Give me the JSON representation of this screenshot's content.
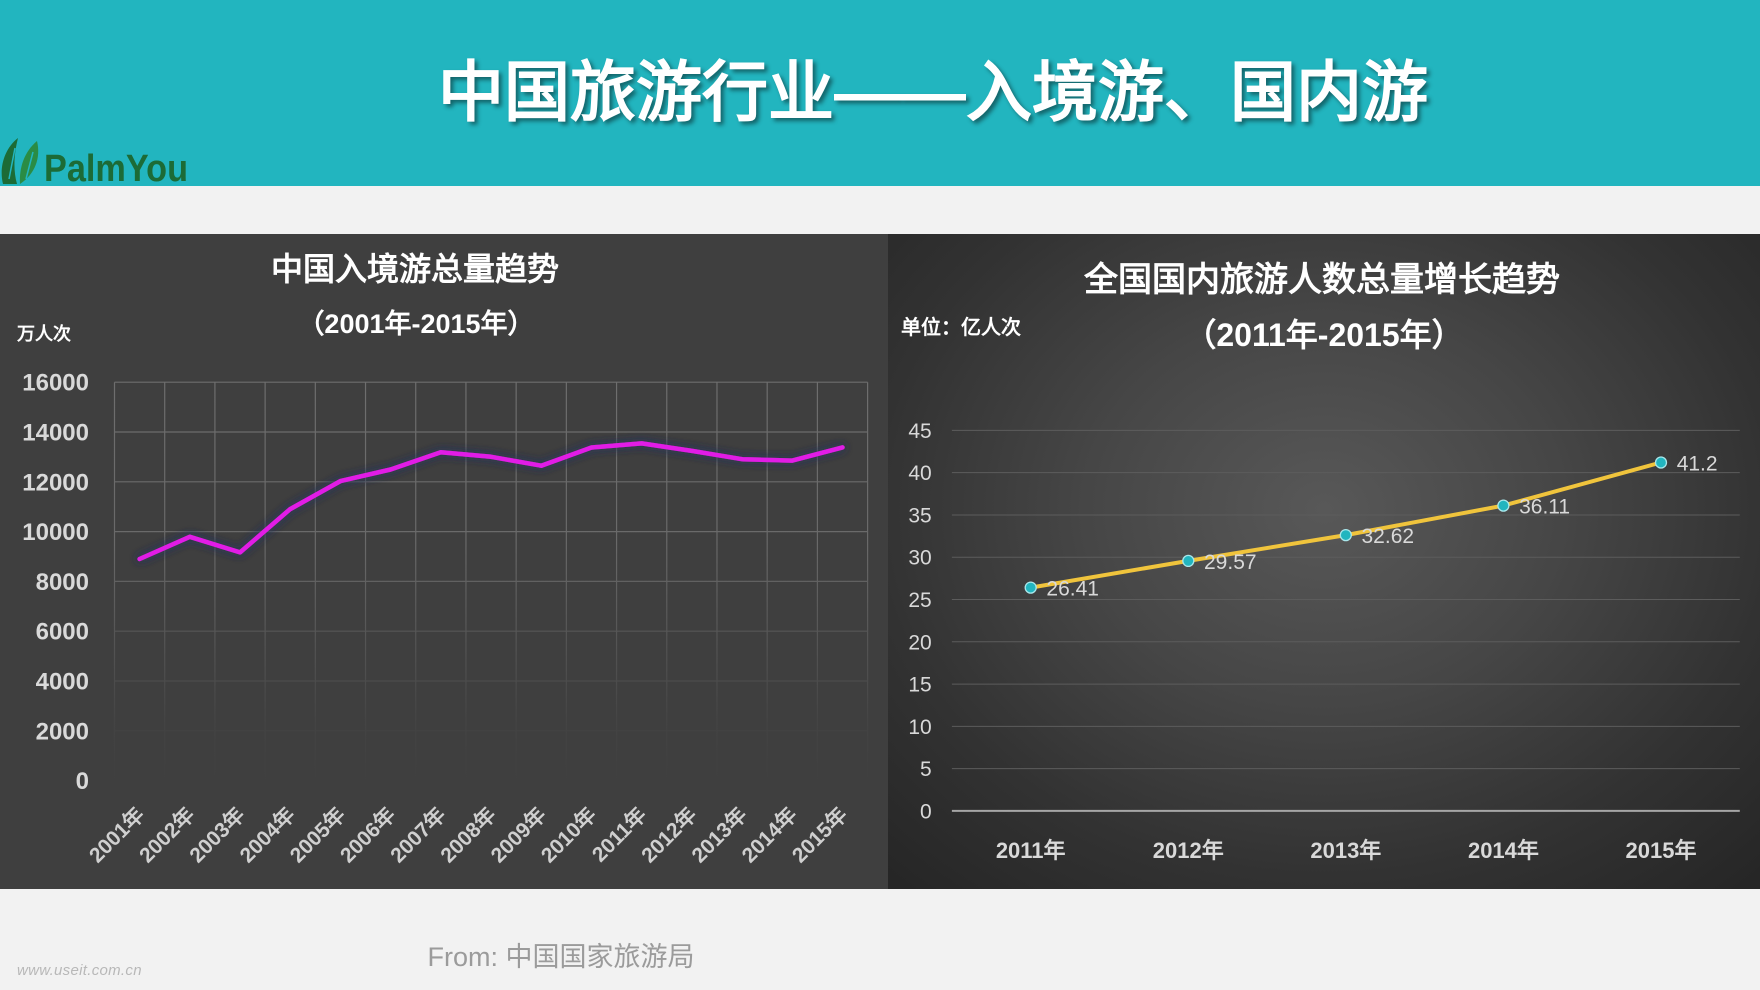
{
  "header": {
    "title": "中国旅游行业——入境游、国内游",
    "logo_text": "PalmYou",
    "logo_icon": "palm-leaf-icon",
    "background_color": "#22B5BF",
    "logo_color": "#1C6B36"
  },
  "chart_data": [
    {
      "type": "line",
      "title": "中国入境游总量趋势",
      "subtitle": "（2001年-2015年）",
      "ylabel": "万人次",
      "categories": [
        "2001年",
        "2002年",
        "2003年",
        "2004年",
        "2005年",
        "2006年",
        "2007年",
        "2008年",
        "2009年",
        "2010年",
        "2011年",
        "2012年",
        "2013年",
        "2014年",
        "2015年"
      ],
      "values": [
        8901,
        9791,
        9166,
        10904,
        12029,
        12494,
        13187,
        13003,
        12648,
        13376,
        13542,
        13241,
        12908,
        12850,
        13382
      ],
      "ylim": [
        0,
        16000
      ],
      "yticks": [
        0,
        2000,
        4000,
        6000,
        8000,
        10000,
        12000,
        14000,
        16000
      ],
      "grid": true,
      "line_color": "#E11EE6"
    },
    {
      "type": "line",
      "title": "全国国内旅游人数总量增长趋势",
      "subtitle": "（2011年-2015年）",
      "ylabel": "单位：亿人次",
      "categories": [
        "2011年",
        "2012年",
        "2013年",
        "2014年",
        "2015年"
      ],
      "values": [
        26.41,
        29.57,
        32.62,
        36.11,
        41.2
      ],
      "ylim": [
        0,
        45
      ],
      "yticks": [
        0,
        5,
        10,
        15,
        20,
        25,
        30,
        35,
        40,
        45
      ],
      "grid": true,
      "line_color": "#F0C43C",
      "marker_color": "#22B5BF"
    }
  ],
  "footer": {
    "source": "From: 中国国家旅游局",
    "watermark": "www.useit.com.cn"
  }
}
